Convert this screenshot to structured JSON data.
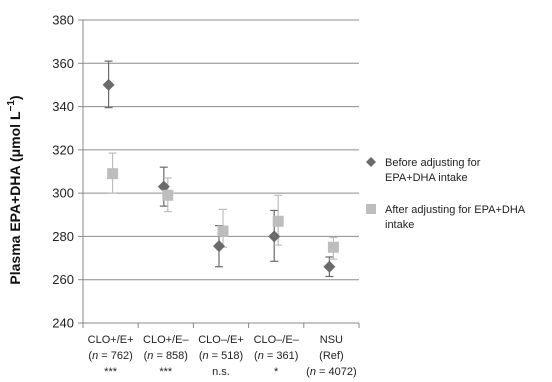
{
  "chart_data": {
    "type": "scatter",
    "ylabel": "Plasma EPA+DHA (μmol L",
    "ylabel_sup": "−1",
    "ylabel_close": ")",
    "ylim": [
      240,
      380
    ],
    "yticks": [
      240,
      260,
      280,
      300,
      320,
      340,
      360,
      380
    ],
    "grid": true,
    "legend_position": "right",
    "categories": [
      {
        "name": "CLO+/E+",
        "n_label": "(n = 762)",
        "sig": "***"
      },
      {
        "name": "CLO+/E–",
        "n_label": "(n = 858)",
        "sig": "***"
      },
      {
        "name": "CLO–/E+",
        "n_label": "(n = 518)",
        "sig": "n.s."
      },
      {
        "name": "CLO–/E–",
        "n_label": "(n = 361)",
        "sig": "*"
      },
      {
        "name": "NSU",
        "n_label": "(Ref)",
        "sig": "(n = 4072)"
      }
    ],
    "series": [
      {
        "name": "Before adjusting for EPA+DHA intake",
        "legend_lines": [
          "Before adjusting for",
          "EPA+DHA intake"
        ],
        "marker": "diamond",
        "color": "#6b6b6b",
        "values": [
          350,
          303,
          275.5,
          280,
          266
        ],
        "err_low": [
          339.5,
          294,
          266,
          268.5,
          261.5
        ],
        "err_high": [
          361,
          312,
          285,
          292,
          270.5
        ]
      },
      {
        "name": "After adjusting for EPA+DHA intake",
        "legend_lines": [
          "After adjusting for EPA+DHA",
          "intake"
        ],
        "marker": "square",
        "color": "#bdbdbd",
        "values": [
          309,
          299,
          282.5,
          287,
          275
        ],
        "err_low": [
          300,
          291.5,
          275,
          276,
          269.5
        ],
        "err_high": [
          318.5,
          307,
          292.5,
          299,
          279.5
        ]
      }
    ]
  }
}
